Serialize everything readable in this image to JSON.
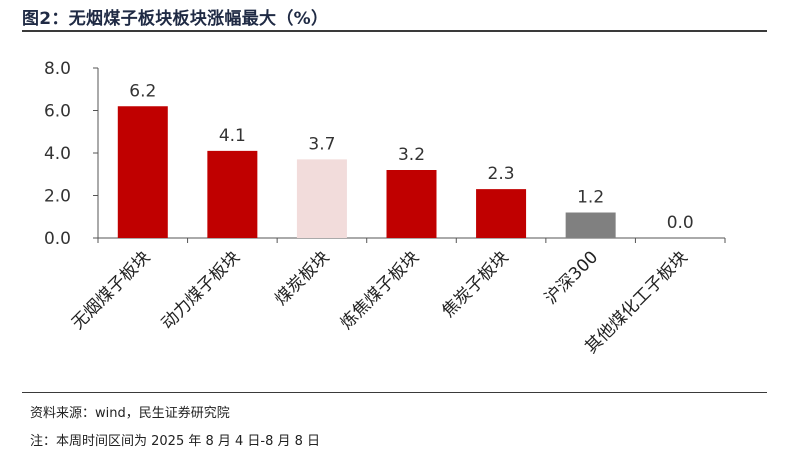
{
  "title": "图2：无烟煤子板块板块涨幅最大（%）",
  "source": "资料来源：wind，民生证券研究院",
  "period_note": "注：本周时间区间为 2025 年 8 月 4 日-8 月 8 日",
  "chart_data": {
    "type": "bar",
    "categories": [
      "无烟煤子板块",
      "动力煤子板块",
      "煤炭板块",
      "炼焦煤子板块",
      "焦炭子板块",
      "沪深300",
      "其他煤化工子板块"
    ],
    "values": [
      6.2,
      4.1,
      3.7,
      3.2,
      2.3,
      1.2,
      0.0
    ],
    "value_labels": [
      "6.2",
      "4.1",
      "3.7",
      "3.2",
      "2.3",
      "1.2",
      "0.0"
    ],
    "colors": [
      "#C00000",
      "#C00000",
      "#F2DCDB",
      "#C00000",
      "#C00000",
      "#808080",
      "#C00000"
    ],
    "yticks": [
      "0.0",
      "2.0",
      "4.0",
      "6.0",
      "8.0"
    ],
    "ylim": [
      0,
      8
    ],
    "grid": false,
    "legend": "none"
  }
}
